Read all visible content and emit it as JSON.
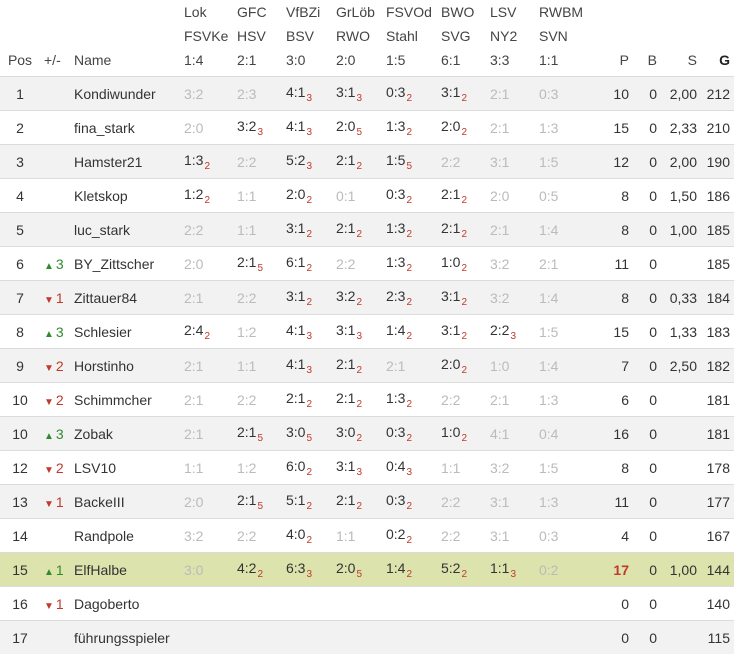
{
  "columns": {
    "pos": "Pos",
    "change": "+/-",
    "name": "Name",
    "p": "P",
    "b": "B",
    "s": "S",
    "g": "G"
  },
  "matches": [
    {
      "home": "Lok",
      "away": "FSVKe",
      "result": "1:4"
    },
    {
      "home": "GFC",
      "away": "HSV",
      "result": "2:1"
    },
    {
      "home": "VfBZi",
      "away": "BSV",
      "result": "3:0"
    },
    {
      "home": "GrLöb",
      "away": "RWO",
      "result": "2:0"
    },
    {
      "home": "FSVOd",
      "away": "Stahl",
      "result": "1:5"
    },
    {
      "home": "BWO",
      "away": "SVG",
      "result": "6:1"
    },
    {
      "home": "LSV",
      "away": "NY2",
      "result": "3:3"
    },
    {
      "home": "RWBM",
      "away": "SVN",
      "result": "1:1"
    }
  ],
  "rows": [
    {
      "pos": "1",
      "dir": "",
      "chg": "",
      "name": "Kondiwunder",
      "tips": [
        {
          "t": "3:2",
          "p": "",
          "na": true
        },
        {
          "t": "2:3",
          "p": "",
          "na": true
        },
        {
          "t": "4:1",
          "p": "3",
          "na": false
        },
        {
          "t": "3:1",
          "p": "3",
          "na": false
        },
        {
          "t": "0:3",
          "p": "2",
          "na": false
        },
        {
          "t": "3:1",
          "p": "2",
          "na": false
        },
        {
          "t": "2:1",
          "p": "",
          "na": true
        },
        {
          "t": "0:3",
          "p": "",
          "na": true
        }
      ],
      "p": "10",
      "b": "0",
      "s": "2,00",
      "g": "212",
      "hl": false
    },
    {
      "pos": "2",
      "dir": "",
      "chg": "",
      "name": "fina_stark",
      "tips": [
        {
          "t": "2:0",
          "p": "",
          "na": true
        },
        {
          "t": "3:2",
          "p": "3",
          "na": false
        },
        {
          "t": "4:1",
          "p": "3",
          "na": false
        },
        {
          "t": "2:0",
          "p": "5",
          "na": false
        },
        {
          "t": "1:3",
          "p": "2",
          "na": false
        },
        {
          "t": "2:0",
          "p": "2",
          "na": false
        },
        {
          "t": "2:1",
          "p": "",
          "na": true
        },
        {
          "t": "1:3",
          "p": "",
          "na": true
        }
      ],
      "p": "15",
      "b": "0",
      "s": "2,33",
      "g": "210",
      "hl": false
    },
    {
      "pos": "3",
      "dir": "",
      "chg": "",
      "name": "Hamster21",
      "tips": [
        {
          "t": "1:3",
          "p": "2",
          "na": false
        },
        {
          "t": "2:2",
          "p": "",
          "na": true
        },
        {
          "t": "5:2",
          "p": "3",
          "na": false
        },
        {
          "t": "2:1",
          "p": "2",
          "na": false
        },
        {
          "t": "1:5",
          "p": "5",
          "na": false
        },
        {
          "t": "2:2",
          "p": "",
          "na": true
        },
        {
          "t": "3:1",
          "p": "",
          "na": true
        },
        {
          "t": "1:5",
          "p": "",
          "na": true
        }
      ],
      "p": "12",
      "b": "0",
      "s": "2,00",
      "g": "190",
      "hl": false
    },
    {
      "pos": "4",
      "dir": "",
      "chg": "",
      "name": "Kletskop",
      "tips": [
        {
          "t": "1:2",
          "p": "2",
          "na": false
        },
        {
          "t": "1:1",
          "p": "",
          "na": true
        },
        {
          "t": "2:0",
          "p": "2",
          "na": false
        },
        {
          "t": "0:1",
          "p": "",
          "na": true
        },
        {
          "t": "0:3",
          "p": "2",
          "na": false
        },
        {
          "t": "2:1",
          "p": "2",
          "na": false
        },
        {
          "t": "2:0",
          "p": "",
          "na": true
        },
        {
          "t": "0:5",
          "p": "",
          "na": true
        }
      ],
      "p": "8",
      "b": "0",
      "s": "1,50",
      "g": "186",
      "hl": false
    },
    {
      "pos": "5",
      "dir": "",
      "chg": "",
      "name": "luc_stark",
      "tips": [
        {
          "t": "2:2",
          "p": "",
          "na": true
        },
        {
          "t": "1:1",
          "p": "",
          "na": true
        },
        {
          "t": "3:1",
          "p": "2",
          "na": false
        },
        {
          "t": "2:1",
          "p": "2",
          "na": false
        },
        {
          "t": "1:3",
          "p": "2",
          "na": false
        },
        {
          "t": "2:1",
          "p": "2",
          "na": false
        },
        {
          "t": "2:1",
          "p": "",
          "na": true
        },
        {
          "t": "1:4",
          "p": "",
          "na": true
        }
      ],
      "p": "8",
      "b": "0",
      "s": "1,00",
      "g": "185",
      "hl": false
    },
    {
      "pos": "6",
      "dir": "up",
      "chg": "3",
      "name": "BY_Zittscher",
      "tips": [
        {
          "t": "2:0",
          "p": "",
          "na": true
        },
        {
          "t": "2:1",
          "p": "5",
          "na": false
        },
        {
          "t": "6:1",
          "p": "2",
          "na": false
        },
        {
          "t": "2:2",
          "p": "",
          "na": true
        },
        {
          "t": "1:3",
          "p": "2",
          "na": false
        },
        {
          "t": "1:0",
          "p": "2",
          "na": false
        },
        {
          "t": "3:2",
          "p": "",
          "na": true
        },
        {
          "t": "2:1",
          "p": "",
          "na": true
        }
      ],
      "p": "11",
      "b": "0",
      "s": "",
      "g": "185",
      "hl": false
    },
    {
      "pos": "7",
      "dir": "dn",
      "chg": "1",
      "name": "Zittauer84",
      "tips": [
        {
          "t": "2:1",
          "p": "",
          "na": true
        },
        {
          "t": "2:2",
          "p": "",
          "na": true
        },
        {
          "t": "3:1",
          "p": "2",
          "na": false
        },
        {
          "t": "3:2",
          "p": "2",
          "na": false
        },
        {
          "t": "2:3",
          "p": "2",
          "na": false
        },
        {
          "t": "3:1",
          "p": "2",
          "na": false
        },
        {
          "t": "3:2",
          "p": "",
          "na": true
        },
        {
          "t": "1:4",
          "p": "",
          "na": true
        }
      ],
      "p": "8",
      "b": "0",
      "s": "0,33",
      "g": "184",
      "hl": false
    },
    {
      "pos": "8",
      "dir": "up",
      "chg": "3",
      "name": "Schlesier",
      "tips": [
        {
          "t": "2:4",
          "p": "2",
          "na": false
        },
        {
          "t": "1:2",
          "p": "",
          "na": true
        },
        {
          "t": "4:1",
          "p": "3",
          "na": false
        },
        {
          "t": "3:1",
          "p": "3",
          "na": false
        },
        {
          "t": "1:4",
          "p": "2",
          "na": false
        },
        {
          "t": "3:1",
          "p": "2",
          "na": false
        },
        {
          "t": "2:2",
          "p": "3",
          "na": false
        },
        {
          "t": "1:5",
          "p": "",
          "na": true
        }
      ],
      "p": "15",
      "b": "0",
      "s": "1,33",
      "g": "183",
      "hl": false
    },
    {
      "pos": "9",
      "dir": "dn",
      "chg": "2",
      "name": "Horstinho",
      "tips": [
        {
          "t": "2:1",
          "p": "",
          "na": true
        },
        {
          "t": "1:1",
          "p": "",
          "na": true
        },
        {
          "t": "4:1",
          "p": "3",
          "na": false
        },
        {
          "t": "2:1",
          "p": "2",
          "na": false
        },
        {
          "t": "2:1",
          "p": "",
          "na": true
        },
        {
          "t": "2:0",
          "p": "2",
          "na": false
        },
        {
          "t": "1:0",
          "p": "",
          "na": true
        },
        {
          "t": "1:4",
          "p": "",
          "na": true
        }
      ],
      "p": "7",
      "b": "0",
      "s": "2,50",
      "g": "182",
      "hl": false
    },
    {
      "pos": "10",
      "dir": "dn",
      "chg": "2",
      "name": "Schimmcher",
      "tips": [
        {
          "t": "2:1",
          "p": "",
          "na": true
        },
        {
          "t": "2:2",
          "p": "",
          "na": true
        },
        {
          "t": "2:1",
          "p": "2",
          "na": false
        },
        {
          "t": "2:1",
          "p": "2",
          "na": false
        },
        {
          "t": "1:3",
          "p": "2",
          "na": false
        },
        {
          "t": "2:2",
          "p": "",
          "na": true
        },
        {
          "t": "2:1",
          "p": "",
          "na": true
        },
        {
          "t": "1:3",
          "p": "",
          "na": true
        }
      ],
      "p": "6",
      "b": "0",
      "s": "",
      "g": "181",
      "hl": false
    },
    {
      "pos": "10",
      "dir": "up",
      "chg": "3",
      "name": "Zobak",
      "tips": [
        {
          "t": "2:1",
          "p": "",
          "na": true
        },
        {
          "t": "2:1",
          "p": "5",
          "na": false
        },
        {
          "t": "3:0",
          "p": "5",
          "na": false
        },
        {
          "t": "3:0",
          "p": "2",
          "na": false
        },
        {
          "t": "0:3",
          "p": "2",
          "na": false
        },
        {
          "t": "1:0",
          "p": "2",
          "na": false
        },
        {
          "t": "4:1",
          "p": "",
          "na": true
        },
        {
          "t": "0:4",
          "p": "",
          "na": true
        }
      ],
      "p": "16",
      "b": "0",
      "s": "",
      "g": "181",
      "hl": false
    },
    {
      "pos": "12",
      "dir": "dn",
      "chg": "2",
      "name": "LSV10",
      "tips": [
        {
          "t": "1:1",
          "p": "",
          "na": true
        },
        {
          "t": "1:2",
          "p": "",
          "na": true
        },
        {
          "t": "6:0",
          "p": "2",
          "na": false
        },
        {
          "t": "3:1",
          "p": "3",
          "na": false
        },
        {
          "t": "0:4",
          "p": "3",
          "na": false
        },
        {
          "t": "1:1",
          "p": "",
          "na": true
        },
        {
          "t": "3:2",
          "p": "",
          "na": true
        },
        {
          "t": "1:5",
          "p": "",
          "na": true
        }
      ],
      "p": "8",
      "b": "0",
      "s": "",
      "g": "178",
      "hl": false
    },
    {
      "pos": "13",
      "dir": "dn",
      "chg": "1",
      "name": "BackeIII",
      "tips": [
        {
          "t": "2:0",
          "p": "",
          "na": true
        },
        {
          "t": "2:1",
          "p": "5",
          "na": false
        },
        {
          "t": "5:1",
          "p": "2",
          "na": false
        },
        {
          "t": "2:1",
          "p": "2",
          "na": false
        },
        {
          "t": "0:3",
          "p": "2",
          "na": false
        },
        {
          "t": "2:2",
          "p": "",
          "na": true
        },
        {
          "t": "3:1",
          "p": "",
          "na": true
        },
        {
          "t": "1:3",
          "p": "",
          "na": true
        }
      ],
      "p": "11",
      "b": "0",
      "s": "",
      "g": "177",
      "hl": false
    },
    {
      "pos": "14",
      "dir": "",
      "chg": "",
      "name": "Randpole",
      "tips": [
        {
          "t": "3:2",
          "p": "",
          "na": true
        },
        {
          "t": "2:2",
          "p": "",
          "na": true
        },
        {
          "t": "4:0",
          "p": "2",
          "na": false
        },
        {
          "t": "1:1",
          "p": "",
          "na": true
        },
        {
          "t": "0:2",
          "p": "2",
          "na": false
        },
        {
          "t": "2:2",
          "p": "",
          "na": true
        },
        {
          "t": "3:1",
          "p": "",
          "na": true
        },
        {
          "t": "0:3",
          "p": "",
          "na": true
        }
      ],
      "p": "4",
      "b": "0",
      "s": "",
      "g": "167",
      "hl": false
    },
    {
      "pos": "15",
      "dir": "up",
      "chg": "1",
      "name": "ElfHalbe",
      "tips": [
        {
          "t": "3:0",
          "p": "",
          "na": true
        },
        {
          "t": "4:2",
          "p": "2",
          "na": false
        },
        {
          "t": "6:3",
          "p": "3",
          "na": false
        },
        {
          "t": "2:0",
          "p": "5",
          "na": false
        },
        {
          "t": "1:4",
          "p": "2",
          "na": false
        },
        {
          "t": "5:2",
          "p": "2",
          "na": false
        },
        {
          "t": "1:1",
          "p": "3",
          "na": false
        },
        {
          "t": "0:2",
          "p": "",
          "na": true
        }
      ],
      "p": "17",
      "b": "0",
      "s": "1,00",
      "g": "144",
      "hl": true
    },
    {
      "pos": "16",
      "dir": "dn",
      "chg": "1",
      "name": "Dagoberto",
      "tips": [],
      "p": "0",
      "b": "0",
      "s": "",
      "g": "140",
      "hl": false
    },
    {
      "pos": "17",
      "dir": "",
      "chg": "",
      "name": "führungsspieler",
      "tips": [],
      "p": "0",
      "b": "0",
      "s": "",
      "g": "115",
      "hl": false
    }
  ],
  "colors": {
    "up": "#2e8b2e",
    "down": "#c0392b",
    "highlight": "#dde3ad",
    "stripe": "#f2f2f2"
  }
}
